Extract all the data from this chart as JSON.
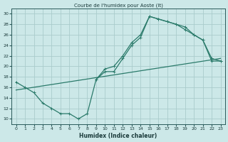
{
  "title": "Courbe de l'humidex pour Aoste (It)",
  "xlabel": "Humidex (Indice chaleur)",
  "background_color": "#cce8e8",
  "grid_color": "#aacccc",
  "line_color": "#2a7a6a",
  "xlim": [
    -0.5,
    23.5
  ],
  "ylim": [
    9.0,
    31.0
  ],
  "yticks": [
    10,
    12,
    14,
    16,
    18,
    20,
    22,
    24,
    26,
    28,
    30
  ],
  "xticks": [
    0,
    1,
    2,
    3,
    4,
    5,
    6,
    7,
    8,
    9,
    10,
    11,
    12,
    13,
    14,
    15,
    16,
    17,
    18,
    19,
    20,
    21,
    22,
    23
  ],
  "curve1_x": [
    0,
    1,
    2,
    3,
    4,
    5,
    6,
    7,
    8,
    9,
    10,
    11,
    12,
    13,
    14,
    15,
    16,
    17,
    18,
    19,
    20,
    21,
    22,
    23
  ],
  "curve1_y": [
    17,
    16,
    15,
    13,
    12,
    11,
    11,
    10,
    11,
    17.5,
    19,
    19,
    21.5,
    24,
    25.5,
    29.5,
    29,
    28.5,
    28,
    27.5,
    26,
    25,
    21,
    21
  ],
  "curve2_x": [
    9,
    10,
    11,
    12,
    13,
    14,
    15,
    16,
    17,
    18,
    19,
    20,
    21,
    22,
    23
  ],
  "curve2_y": [
    17.5,
    19.5,
    20,
    22,
    24.5,
    26,
    29.5,
    29,
    28.5,
    28,
    27,
    26,
    25,
    21.5,
    21
  ],
  "line1_x": [
    0,
    23
  ],
  "line1_y": [
    15.5,
    21.5
  ],
  "marker": "+"
}
